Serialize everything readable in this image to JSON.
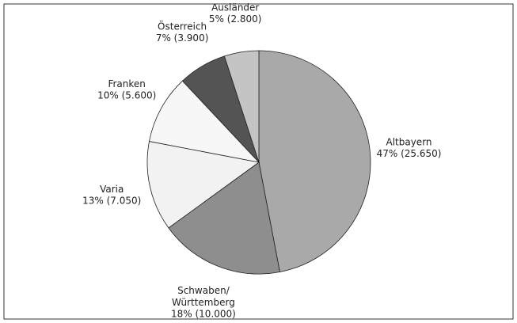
{
  "chart_data": {
    "type": "pie",
    "categories": [
      "Altbayern",
      "Schwaben/ Württemberg",
      "Varia",
      "Franken",
      "Österreich",
      "Ausländer"
    ],
    "values": [
      47,
      18,
      13,
      10,
      7,
      5
    ],
    "value_labels": [
      "47% (25.650)",
      "18% (10.000)",
      "13% (7.050)",
      "10% (5.600)",
      "7% (3.900)",
      "5% (2.800)"
    ],
    "colors": [
      "#a9a9a9",
      "#8e8e8e",
      "#f2f2f2",
      "#f7f7f7",
      "#545454",
      "#c4c4c4"
    ]
  }
}
